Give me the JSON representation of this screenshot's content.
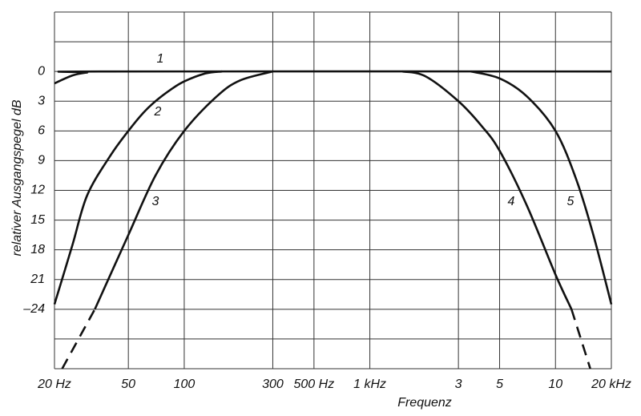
{
  "chart_data": {
    "type": "line",
    "xlabel": "Frequenz",
    "ylabel": "relativer Ausgangspegel  dB",
    "xscale": "log",
    "xlim": [
      20,
      20000
    ],
    "ylim": [
      30,
      -6
    ],
    "xticks": [
      {
        "value": 20,
        "label": "20 Hz"
      },
      50,
      100,
      300,
      {
        "value": 500,
        "label": "500 Hz"
      },
      {
        "value": 1000,
        "label": "1 kHz"
      },
      {
        "value": 3000,
        "label": "3"
      },
      {
        "value": 5000,
        "label": "5"
      },
      {
        "value": 10000,
        "label": "10"
      },
      {
        "value": 20000,
        "label": "20 kHz"
      }
    ],
    "yticks": [
      0,
      3,
      6,
      9,
      12,
      15,
      18,
      21,
      {
        "value": 24,
        "label": "–24"
      }
    ],
    "ygrid": [
      -6,
      -3,
      27,
      30
    ],
    "grid": true,
    "color": "#111111",
    "series": [
      {
        "name": "1",
        "x": [
          20,
          25,
          30,
          35,
          20000
        ],
        "values": [
          1.2,
          0.4,
          0.1,
          0,
          0
        ]
      },
      {
        "name": "2",
        "x": [
          20,
          25,
          30,
          40,
          50,
          60,
          70,
          85,
          100,
          130,
          160
        ],
        "values": [
          23.5,
          17.5,
          12.5,
          8.5,
          6,
          4.2,
          3,
          1.8,
          1,
          0.2,
          0
        ]
      },
      {
        "name": "3",
        "x": [
          33,
          50,
          70,
          100,
          150,
          200,
          300
        ],
        "values": [
          24,
          16.5,
          10.5,
          6,
          2.5,
          0.9,
          0
        ],
        "extrapolated": {
          "x": [
            22,
            33
          ],
          "values": [
            30,
            24
          ]
        }
      },
      {
        "name": "4",
        "x": [
          1500,
          2000,
          3000,
          4000,
          5000,
          7000,
          10000,
          12200
        ],
        "values": [
          0,
          0.5,
          3,
          5.5,
          8,
          13.5,
          20.5,
          24
        ],
        "extrapolated": {
          "x": [
            12200,
            15400
          ],
          "values": [
            24,
            30
          ]
        }
      },
      {
        "name": "5",
        "x": [
          3500,
          5000,
          7000,
          10000,
          13000,
          16000,
          20000
        ],
        "values": [
          0,
          0.7,
          2.5,
          6,
          11,
          16.5,
          23.5
        ]
      }
    ]
  }
}
